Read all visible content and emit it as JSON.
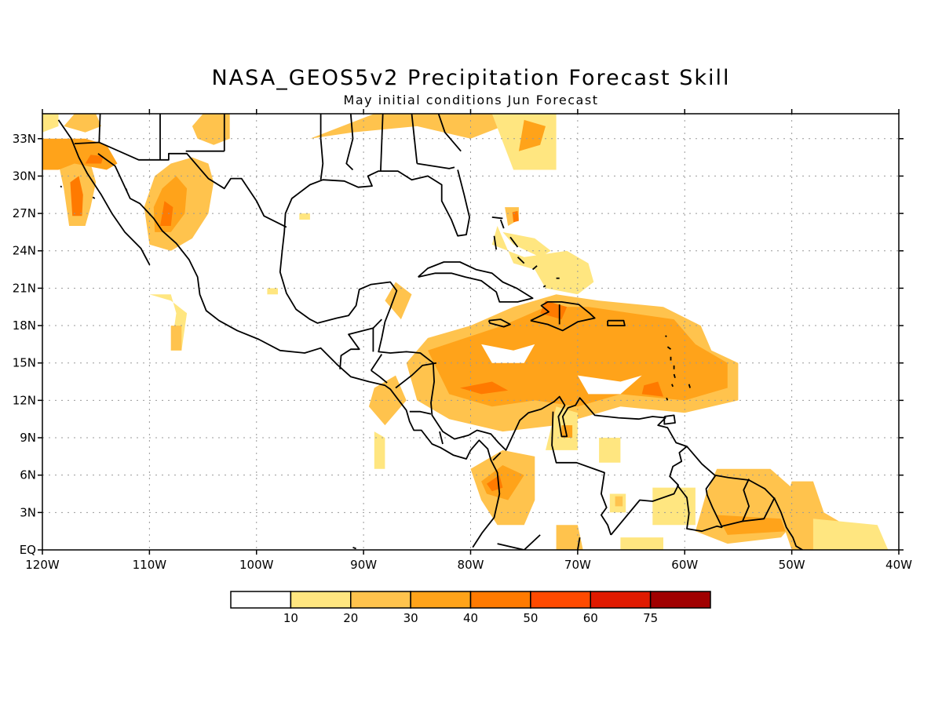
{
  "title": "NASA_GEOS5v2 Precipitation Forecast Skill",
  "subtitle": "May initial conditions  Jun Forecast",
  "map": {
    "lon_range": [
      -120,
      -40
    ],
    "lat_range": [
      0,
      35
    ],
    "lat_ticks": [
      {
        "value": 33,
        "label": "33N"
      },
      {
        "value": 30,
        "label": "30N"
      },
      {
        "value": 27,
        "label": "27N"
      },
      {
        "value": 24,
        "label": "24N"
      },
      {
        "value": 21,
        "label": "21N"
      },
      {
        "value": 18,
        "label": "18N"
      },
      {
        "value": 15,
        "label": "15N"
      },
      {
        "value": 12,
        "label": "12N"
      },
      {
        "value": 9,
        "label": "9N"
      },
      {
        "value": 6,
        "label": "6N"
      },
      {
        "value": 3,
        "label": "3N"
      },
      {
        "value": 0,
        "label": "EQ"
      }
    ],
    "lon_ticks": [
      {
        "value": -120,
        "label": "120W"
      },
      {
        "value": -110,
        "label": "110W"
      },
      {
        "value": -100,
        "label": "100W"
      },
      {
        "value": -90,
        "label": "90W"
      },
      {
        "value": -80,
        "label": "80W"
      },
      {
        "value": -70,
        "label": "70W"
      },
      {
        "value": -60,
        "label": "60W"
      },
      {
        "value": -50,
        "label": "50W"
      },
      {
        "value": -40,
        "label": "40W"
      }
    ],
    "grid": "dotted"
  },
  "colorbar": {
    "colors": [
      "#ffffff",
      "#ffe680",
      "#ffc34d",
      "#ffa31a",
      "#ff7a00",
      "#ff4a00",
      "#e01a00",
      "#a00000"
    ],
    "labels": [
      "10",
      "20",
      "30",
      "40",
      "50",
      "60",
      "75"
    ]
  },
  "regions": [
    {
      "level": 2,
      "pts": [
        [
          -117.5,
          26
        ],
        [
          -116,
          26
        ],
        [
          -115.5,
          27.5
        ],
        [
          -115,
          29.5
        ],
        [
          -115.5,
          31
        ],
        [
          -117,
          32
        ],
        [
          -118.5,
          31
        ],
        [
          -118,
          29
        ]
      ]
    },
    {
      "level": 4,
      "pts": [
        [
          -117.2,
          26.8
        ],
        [
          -116.3,
          26.8
        ],
        [
          -116.2,
          28.5
        ],
        [
          -116.6,
          30
        ],
        [
          -117.4,
          29.5
        ]
      ]
    },
    {
      "level": 3,
      "pts": [
        [
          -120,
          30.5
        ],
        [
          -118.5,
          30.5
        ],
        [
          -117,
          31
        ],
        [
          -114,
          30.5
        ],
        [
          -113,
          31
        ],
        [
          -114,
          32.5
        ],
        [
          -116,
          33
        ],
        [
          -118,
          33
        ],
        [
          -120,
          33
        ]
      ]
    },
    {
      "level": 4,
      "pts": [
        [
          -116,
          31
        ],
        [
          -114.5,
          31
        ],
        [
          -114.3,
          31.6
        ],
        [
          -115.5,
          31.7
        ]
      ]
    },
    {
      "level": 2,
      "pts": [
        [
          -118,
          34
        ],
        [
          -117,
          35
        ],
        [
          -115,
          35
        ],
        [
          -114.5,
          34
        ],
        [
          -116,
          33.5
        ]
      ]
    },
    {
      "level": 1,
      "pts": [
        [
          -120,
          33.5
        ],
        [
          -118.5,
          34
        ],
        [
          -118.5,
          35
        ],
        [
          -120,
          35
        ]
      ]
    },
    {
      "level": 2,
      "pts": [
        [
          -110,
          24.5
        ],
        [
          -108,
          24
        ],
        [
          -106,
          25
        ],
        [
          -104.5,
          27
        ],
        [
          -104,
          29.5
        ],
        [
          -104.5,
          31
        ],
        [
          -106,
          31.5
        ],
        [
          -108,
          31
        ],
        [
          -109.5,
          30
        ],
        [
          -110.5,
          27.5
        ]
      ]
    },
    {
      "level": 3,
      "pts": [
        [
          -109.5,
          25.5
        ],
        [
          -108,
          25.5
        ],
        [
          -106.7,
          27
        ],
        [
          -106.5,
          29
        ],
        [
          -107.5,
          30
        ],
        [
          -108.8,
          29
        ],
        [
          -109.6,
          27.5
        ]
      ]
    },
    {
      "level": 4,
      "pts": [
        [
          -109,
          26
        ],
        [
          -108,
          26
        ],
        [
          -107.8,
          27.5
        ],
        [
          -108.6,
          28
        ]
      ]
    },
    {
      "level": 2,
      "pts": [
        [
          -105.5,
          33
        ],
        [
          -104,
          32.5
        ],
        [
          -102.5,
          33
        ],
        [
          -102.5,
          35
        ],
        [
          -105,
          35
        ],
        [
          -106,
          34
        ]
      ]
    },
    {
      "level": 1,
      "pts": [
        [
          -110,
          20.5
        ],
        [
          -108,
          20.5
        ],
        [
          -107.5,
          19
        ],
        [
          -108,
          16
        ],
        [
          -107,
          16
        ],
        [
          -106.5,
          19
        ],
        [
          -108,
          20
        ]
      ]
    },
    {
      "level": 2,
      "pts": [
        [
          -108,
          18
        ],
        [
          -107,
          18
        ],
        [
          -107,
          16
        ],
        [
          -108,
          16
        ]
      ]
    },
    {
      "level": 2,
      "pts": [
        [
          -95,
          33
        ],
        [
          -91,
          33.5
        ],
        [
          -85,
          34
        ],
        [
          -80,
          33
        ],
        [
          -77,
          34
        ],
        [
          -72,
          35
        ],
        [
          -89,
          35
        ]
      ]
    },
    {
      "level": 1,
      "pts": [
        [
          -76,
          30.5
        ],
        [
          -72,
          30.5
        ],
        [
          -72,
          35
        ],
        [
          -78,
          35
        ]
      ]
    },
    {
      "level": 3,
      "pts": [
        [
          -75.5,
          32
        ],
        [
          -73.5,
          32.5
        ],
        [
          -73,
          34
        ],
        [
          -75,
          34.5
        ]
      ]
    },
    {
      "level": 1,
      "pts": [
        [
          -96,
          26.5
        ],
        [
          -95,
          26.5
        ],
        [
          -95,
          27
        ],
        [
          -96,
          27
        ]
      ]
    },
    {
      "level": 1,
      "pts": [
        [
          -99,
          20.5
        ],
        [
          -98,
          20.5
        ],
        [
          -98,
          21
        ],
        [
          -99,
          21
        ]
      ]
    },
    {
      "level": 1,
      "pts": [
        [
          -78,
          24.5
        ],
        [
          -75,
          23.5
        ],
        [
          -71,
          24
        ],
        [
          -69,
          23
        ],
        [
          -68.5,
          21.5
        ],
        [
          -70,
          20.5
        ],
        [
          -73,
          21
        ],
        [
          -74,
          22.5
        ],
        [
          -76,
          23
        ],
        [
          -77.5,
          26
        ]
      ]
    },
    {
      "level": 2,
      "pts": [
        [
          -76.5,
          26
        ],
        [
          -75.5,
          26.5
        ],
        [
          -75.5,
          27.5
        ],
        [
          -76.8,
          27.5
        ]
      ]
    },
    {
      "level": 4,
      "pts": [
        [
          -76,
          26.3
        ],
        [
          -75.5,
          26.4
        ],
        [
          -75.6,
          27.2
        ],
        [
          -76.1,
          27.1
        ]
      ]
    },
    {
      "level": 1,
      "pts": [
        [
          -77,
          25.5
        ],
        [
          -74,
          25
        ],
        [
          -72.5,
          24
        ],
        [
          -73.5,
          23.5
        ],
        [
          -76,
          24.5
        ]
      ]
    },
    {
      "level": 2,
      "pts": [
        [
          -88,
          20
        ],
        [
          -87,
          21.5
        ],
        [
          -85.5,
          20.5
        ],
        [
          -86.5,
          18.5
        ]
      ]
    },
    {
      "level": 2,
      "pts": [
        [
          -86,
          15
        ],
        [
          -84,
          17
        ],
        [
          -80,
          18
        ],
        [
          -76,
          19.5
        ],
        [
          -72,
          20.5
        ],
        [
          -68,
          20
        ],
        [
          -62,
          19.5
        ],
        [
          -58.5,
          18
        ],
        [
          -57.5,
          16
        ],
        [
          -55,
          15
        ],
        [
          -55,
          12
        ],
        [
          -60,
          11
        ],
        [
          -66,
          11.5
        ],
        [
          -72,
          10
        ],
        [
          -77,
          9.5
        ],
        [
          -82,
          10.5
        ],
        [
          -85,
          12
        ]
      ]
    },
    {
      "level": 3,
      "pts": [
        [
          -84,
          16
        ],
        [
          -80.5,
          17
        ],
        [
          -77,
          18
        ],
        [
          -73,
          19.5
        ],
        [
          -69,
          19.5
        ],
        [
          -65,
          19
        ],
        [
          -61,
          18.5
        ],
        [
          -59,
          16.5
        ],
        [
          -56,
          15
        ],
        [
          -56,
          13
        ],
        [
          -60,
          12
        ],
        [
          -66,
          12.5
        ],
        [
          -70,
          11.5
        ],
        [
          -74,
          12
        ],
        [
          -78,
          11.5
        ],
        [
          -82,
          12.5
        ]
      ]
    },
    {
      "level": 4,
      "pts": [
        [
          -81,
          13
        ],
        [
          -79,
          12.5
        ],
        [
          -76.5,
          12.8
        ],
        [
          -78,
          13.5
        ]
      ]
    },
    {
      "level": 4,
      "pts": [
        [
          -73.5,
          19
        ],
        [
          -71.5,
          18.5
        ],
        [
          -71,
          19.5
        ],
        [
          -73,
          20
        ]
      ]
    },
    {
      "level": 4,
      "pts": [
        [
          -64,
          12.5
        ],
        [
          -62,
          12.3
        ],
        [
          -62.5,
          13.5
        ],
        [
          -63.8,
          13.2
        ]
      ]
    },
    {
      "level": 0,
      "pts": [
        [
          -79,
          16.5
        ],
        [
          -76,
          16
        ],
        [
          -74,
          16.5
        ],
        [
          -75,
          15
        ],
        [
          -78,
          15
        ]
      ]
    },
    {
      "level": 0,
      "pts": [
        [
          -70,
          14
        ],
        [
          -66,
          13.5
        ],
        [
          -64,
          14
        ],
        [
          -66,
          12.5
        ],
        [
          -69,
          12.5
        ]
      ]
    },
    {
      "level": 2,
      "pts": [
        [
          -89,
          13
        ],
        [
          -87,
          14
        ],
        [
          -86,
          12
        ],
        [
          -88,
          10
        ],
        [
          -89.5,
          11.5
        ]
      ]
    },
    {
      "level": 1,
      "pts": [
        [
          -89,
          9.5
        ],
        [
          -88,
          9
        ],
        [
          -88,
          6.5
        ],
        [
          -89,
          6.5
        ]
      ]
    },
    {
      "level": 2,
      "pts": [
        [
          -80,
          6.5
        ],
        [
          -77,
          8
        ],
        [
          -74,
          7.5
        ],
        [
          -74,
          4
        ],
        [
          -75,
          2
        ],
        [
          -77.5,
          2
        ],
        [
          -79,
          4
        ]
      ]
    },
    {
      "level": 3,
      "pts": [
        [
          -79,
          5.5
        ],
        [
          -77,
          6.8
        ],
        [
          -75,
          6
        ],
        [
          -76.5,
          4
        ],
        [
          -78.5,
          4.5
        ]
      ]
    },
    {
      "level": 4,
      "pts": [
        [
          -78.5,
          5.3
        ],
        [
          -77.3,
          6
        ],
        [
          -77,
          5
        ],
        [
          -78,
          4.7
        ]
      ]
    },
    {
      "level": 1,
      "pts": [
        [
          -72,
          11.5
        ],
        [
          -70,
          11
        ],
        [
          -70,
          8
        ],
        [
          -73,
          8
        ]
      ]
    },
    {
      "level": 3,
      "pts": [
        [
          -71.5,
          10
        ],
        [
          -70.5,
          10
        ],
        [
          -70.5,
          9
        ],
        [
          -71.5,
          9
        ]
      ]
    },
    {
      "level": 1,
      "pts": [
        [
          -68,
          9
        ],
        [
          -66,
          9
        ],
        [
          -66,
          7
        ],
        [
          -68,
          7
        ]
      ]
    },
    {
      "level": 1,
      "pts": [
        [
          -67,
          4.5
        ],
        [
          -65.5,
          4.5
        ],
        [
          -65.5,
          3
        ],
        [
          -67,
          3
        ]
      ]
    },
    {
      "level": 2,
      "pts": [
        [
          -66.5,
          4.3
        ],
        [
          -65.8,
          4.3
        ],
        [
          -65.8,
          3.5
        ],
        [
          -66.5,
          3.5
        ]
      ]
    },
    {
      "level": 1,
      "pts": [
        [
          -63,
          5
        ],
        [
          -59,
          5
        ],
        [
          -59,
          2
        ],
        [
          -63,
          2
        ]
      ]
    },
    {
      "level": 2,
      "pts": [
        [
          -57,
          6.5
        ],
        [
          -52,
          6.5
        ],
        [
          -50,
          5
        ],
        [
          -49,
          3
        ],
        [
          -51,
          1
        ],
        [
          -56,
          0.5
        ],
        [
          -59,
          1.5
        ],
        [
          -58,
          4.5
        ]
      ]
    },
    {
      "level": 3,
      "pts": [
        [
          -57,
          2.8
        ],
        [
          -51,
          2.5
        ],
        [
          -50.5,
          1.5
        ],
        [
          -56,
          1.2
        ]
      ]
    },
    {
      "level": 2,
      "pts": [
        [
          -50,
          5.5
        ],
        [
          -48,
          5.5
        ],
        [
          -47,
          3
        ],
        [
          -45,
          2
        ],
        [
          -44,
          0
        ],
        [
          -50,
          0
        ],
        [
          -51,
          2.5
        ]
      ]
    },
    {
      "level": 1,
      "pts": [
        [
          -48,
          2.5
        ],
        [
          -42,
          2
        ],
        [
          -41,
          0
        ],
        [
          -48,
          0
        ]
      ]
    },
    {
      "level": 2,
      "pts": [
        [
          -72,
          2
        ],
        [
          -70,
          2
        ],
        [
          -69.5,
          0
        ],
        [
          -72,
          0
        ]
      ]
    },
    {
      "level": 1,
      "pts": [
        [
          -66,
          1
        ],
        [
          -62,
          1
        ],
        [
          -62,
          0
        ],
        [
          -66,
          0
        ]
      ]
    }
  ]
}
